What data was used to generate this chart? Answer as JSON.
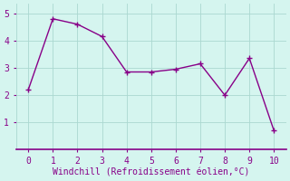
{
  "x": [
    0,
    1,
    2,
    3,
    4,
    5,
    6,
    7,
    8,
    9,
    10
  ],
  "y": [
    2.2,
    4.8,
    4.6,
    4.15,
    2.85,
    2.85,
    2.95,
    3.15,
    2.0,
    3.35,
    0.7
  ],
  "line_color": "#880088",
  "marker": "+",
  "marker_size": 4,
  "marker_linewidth": 1.0,
  "line_width": 1.0,
  "xlabel": "Windchill (Refroidissement éolien,°C)",
  "xlabel_fontsize": 7,
  "xlim": [
    -0.5,
    10.5
  ],
  "ylim": [
    0.0,
    5.35
  ],
  "xticks": [
    0,
    1,
    2,
    3,
    4,
    5,
    6,
    7,
    8,
    9,
    10
  ],
  "yticks": [
    1,
    2,
    3,
    4,
    5
  ],
  "tick_fontsize": 7,
  "background_color": "#d5f5ef",
  "grid_color": "#aad8d0",
  "grid_linewidth": 0.6,
  "spine_color": "#880088",
  "spine_linewidth": 1.2
}
